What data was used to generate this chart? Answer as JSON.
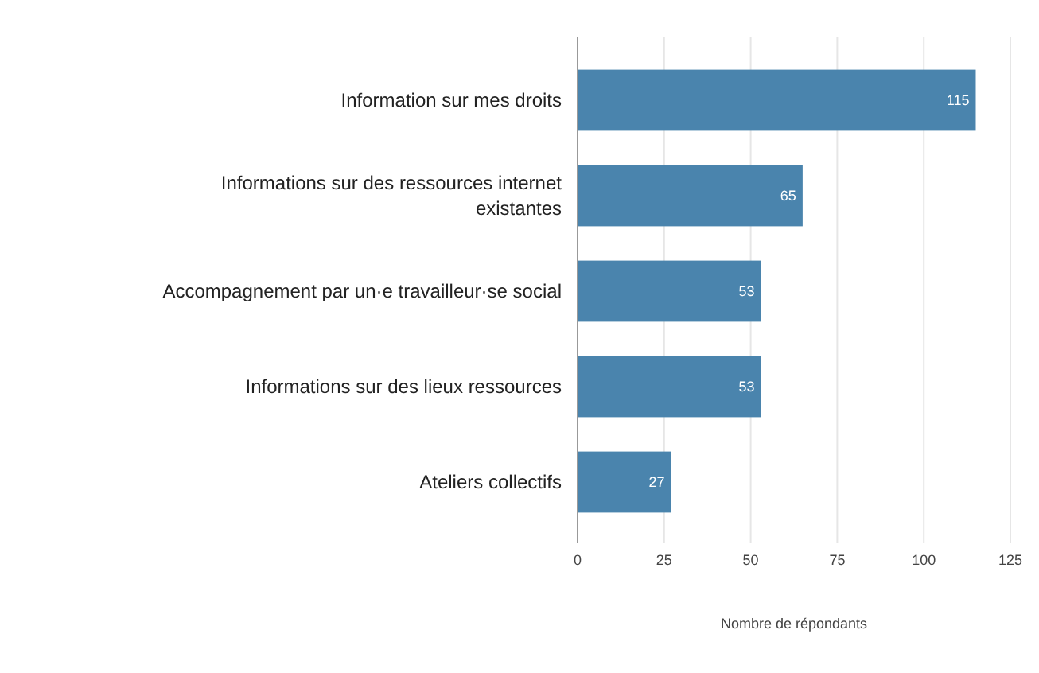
{
  "chart_data": {
    "type": "bar",
    "orientation": "horizontal",
    "categories": [
      "Information sur mes droits",
      "Informations sur des ressources internet existantes",
      "Accompagnement par un·e travailleur·se social",
      "Informations sur des lieux ressources",
      "Ateliers collectifs"
    ],
    "values": [
      115,
      65,
      53,
      53,
      27
    ],
    "color": "#4a84ad",
    "data_labels": true,
    "xlim": [
      0,
      125
    ],
    "xticks": [
      0,
      25,
      50,
      75,
      100,
      125
    ],
    "grid": "x",
    "xlabel": "Nombre de répondants"
  }
}
